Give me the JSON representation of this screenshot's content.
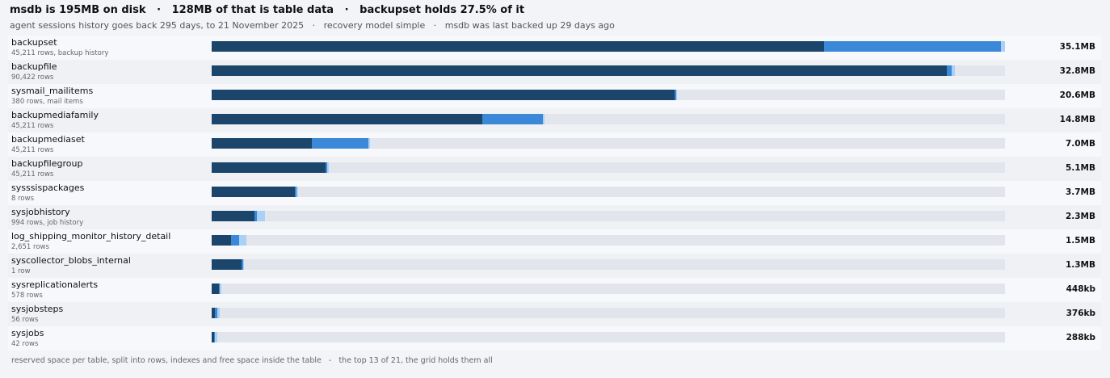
{
  "header": {
    "title": "msdb is 195MB on disk   ·   128MB of that is table data   ·   backupset holds 27.5% of it",
    "subtitle": "agent sessions history goes back 295 days, to 21 November 2025   ·   recovery model simple   ·   msdb was last backed up 29 days ago"
  },
  "colors": {
    "rows": "#1b456b",
    "indexes": "#3b88d8",
    "free": "#a9d0f5",
    "track": "#e2e6ec"
  },
  "tables": [
    {
      "name": "backupset",
      "meta": "45,211 rows, backup history",
      "size": "35.1MB",
      "rows_pct": 77.2,
      "index_pct": 22.3,
      "free_pct": 0.5
    },
    {
      "name": "backupfile",
      "meta": "90,422 rows",
      "size": "32.8MB",
      "rows_pct": 92.7,
      "index_pct": 0.6,
      "free_pct": 0.4
    },
    {
      "name": "sysmail_mailitems",
      "meta": "380 rows, mail items",
      "size": "20.6MB",
      "rows_pct": 58.4,
      "index_pct": 0.2,
      "free_pct": 0.1
    },
    {
      "name": "backupmediafamily",
      "meta": "45,211 rows",
      "size": "14.8MB",
      "rows_pct": 34.1,
      "index_pct": 7.7,
      "free_pct": 0.2
    },
    {
      "name": "backupmediaset",
      "meta": "45,211 rows",
      "size": "7.0MB",
      "rows_pct": 12.6,
      "index_pct": 7.2,
      "free_pct": 0.2
    },
    {
      "name": "backupfilegroup",
      "meta": "45,211 rows",
      "size": "5.1MB",
      "rows_pct": 14.4,
      "index_pct": 0.2,
      "free_pct": 0.2
    },
    {
      "name": "sysssispackages",
      "meta": "8 rows",
      "size": "3.7MB",
      "rows_pct": 10.5,
      "index_pct": 0.2,
      "free_pct": 0.2
    },
    {
      "name": "sysjobhistory",
      "meta": "994 rows, job history",
      "size": "2.3MB",
      "rows_pct": 5.4,
      "index_pct": 0.3,
      "free_pct": 1.0
    },
    {
      "name": "log_shipping_monitor_history_detail",
      "meta": "2,651 rows",
      "size": "1.5MB",
      "rows_pct": 2.4,
      "index_pct": 1.1,
      "free_pct": 0.9
    },
    {
      "name": "syscollector_blobs_internal",
      "meta": "1 row",
      "size": "1.3MB",
      "rows_pct": 3.8,
      "index_pct": 0.2,
      "free_pct": 0.1
    },
    {
      "name": "sysreplicationalerts",
      "meta": "578 rows",
      "size": "448kb",
      "rows_pct": 0.9,
      "index_pct": 0.1,
      "free_pct": 0.2
    },
    {
      "name": "sysjobsteps",
      "meta": "56 rows",
      "size": "376kb",
      "rows_pct": 0.4,
      "index_pct": 0.3,
      "free_pct": 0.3
    },
    {
      "name": "sysjobs",
      "meta": "42 rows",
      "size": "288kb",
      "rows_pct": 0.3,
      "index_pct": 0.1,
      "free_pct": 0.3
    }
  ],
  "footer": "reserved space per table, split into rows, indexes and free space inside the table   -   the top 13 of 21, the grid holds them all"
}
